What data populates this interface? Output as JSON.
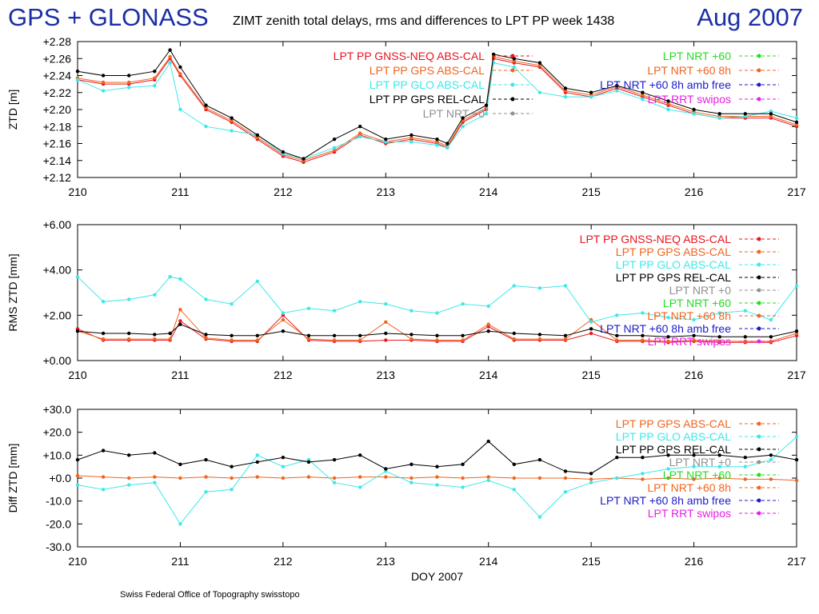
{
  "header": {
    "left_title": "GPS + GLONASS",
    "main_title": "ZIMT zenith total delays, rms and differences to LPT PP week 1438",
    "date": "Aug 2007"
  },
  "footer": {
    "credit": "Swiss Federal Office of Topography swisstopo"
  },
  "colors": {
    "gnss_neq": "#e8141e",
    "gps_abs": "#f0641e",
    "glo_abs": "#3ee8e8",
    "gps_rel": "#000000",
    "nrt0": "#909090",
    "nrt60": "#22dd22",
    "nrt60_8h": "#f0641e",
    "nrt60_8h_amb": "#1c1cc8",
    "rrt": "#e81ee8"
  },
  "chart_data": [
    {
      "type": "line",
      "ylabel": "ZTD [m]",
      "xlabel": "",
      "xlim": [
        210,
        217
      ],
      "ylim": [
        2.12,
        2.28
      ],
      "xticks": [
        "210",
        "211",
        "212",
        "213",
        "214",
        "215",
        "216",
        "217"
      ],
      "yticks": [
        "+2.12",
        "+2.14",
        "+2.16",
        "+2.18",
        "+2.20",
        "+2.22",
        "+2.24",
        "+2.26",
        "+2.28"
      ],
      "x": [
        210.0,
        210.25,
        210.5,
        210.75,
        210.9,
        211.0,
        211.25,
        211.5,
        211.75,
        212.0,
        212.2,
        212.5,
        212.75,
        213.0,
        213.25,
        213.5,
        213.6,
        213.75,
        213.98,
        214.05,
        214.25,
        214.5,
        214.75,
        215.0,
        215.25,
        215.5,
        215.75,
        216.0,
        216.25,
        216.5,
        216.75,
        217.0
      ],
      "series": [
        {
          "name": "LPT PP GNSS-NEQ ABS-CAL",
          "color_key": "gnss_neq",
          "values": [
            2.235,
            2.23,
            2.23,
            2.235,
            2.26,
            2.24,
            2.2,
            2.185,
            2.165,
            2.145,
            2.138,
            2.15,
            2.17,
            2.16,
            2.165,
            2.16,
            2.155,
            2.185,
            2.2,
            2.26,
            2.255,
            2.25,
            2.22,
            2.215,
            2.225,
            2.215,
            2.205,
            2.195,
            2.19,
            2.19,
            2.19,
            2.18
          ]
        },
        {
          "name": "LPT PP GPS ABS-CAL",
          "color_key": "gps_abs",
          "values": [
            2.237,
            2.232,
            2.232,
            2.237,
            2.262,
            2.242,
            2.202,
            2.187,
            2.167,
            2.147,
            2.14,
            2.152,
            2.172,
            2.162,
            2.167,
            2.162,
            2.157,
            2.187,
            2.202,
            2.262,
            2.257,
            2.252,
            2.222,
            2.217,
            2.227,
            2.217,
            2.207,
            2.197,
            2.192,
            2.192,
            2.192,
            2.182
          ]
        },
        {
          "name": "LPT PP GLO ABS-CAL",
          "color_key": "glo_abs",
          "values": [
            2.235,
            2.222,
            2.226,
            2.228,
            2.255,
            2.2,
            2.18,
            2.175,
            2.17,
            2.148,
            2.142,
            2.155,
            2.168,
            2.162,
            2.162,
            2.158,
            2.155,
            2.18,
            2.195,
            2.255,
            2.25,
            2.22,
            2.215,
            2.215,
            2.222,
            2.212,
            2.2,
            2.195,
            2.19,
            2.192,
            2.198,
            2.19
          ]
        },
        {
          "name": "LPT PP GPS REL-CAL",
          "color_key": "gps_rel",
          "values": [
            2.245,
            2.24,
            2.24,
            2.245,
            2.27,
            2.25,
            2.205,
            2.19,
            2.17,
            2.15,
            2.142,
            2.165,
            2.18,
            2.165,
            2.17,
            2.165,
            2.16,
            2.19,
            2.205,
            2.265,
            2.26,
            2.255,
            2.225,
            2.22,
            2.228,
            2.22,
            2.21,
            2.2,
            2.195,
            2.195,
            2.195,
            2.185
          ]
        }
      ],
      "legend": {
        "placement": "inside-top",
        "left": [
          {
            "label": "LPT PP GNSS-NEQ ABS-CAL",
            "color_key": "gnss_neq"
          },
          {
            "label": "LPT PP GPS ABS-CAL",
            "color_key": "gps_abs"
          },
          {
            "label": "LPT PP GLO ABS-CAL",
            "color_key": "glo_abs"
          },
          {
            "label": "LPT PP GPS REL-CAL",
            "color_key": "gps_rel"
          },
          {
            "label": "LPT NRT +0",
            "color_key": "nrt0"
          }
        ],
        "right": [
          {
            "label": "LPT NRT +60",
            "color_key": "nrt60"
          },
          {
            "label": "LPT NRT +60 8h",
            "color_key": "nrt60_8h"
          },
          {
            "label": "LPT NRT +60 8h amb free",
            "color_key": "nrt60_8h_amb"
          },
          {
            "label": "LPT RRT swipos",
            "color_key": "rrt"
          }
        ]
      }
    },
    {
      "type": "line",
      "ylabel": "RMS ZTD [mm]",
      "xlabel": "",
      "xlim": [
        210,
        217
      ],
      "ylim": [
        0,
        6
      ],
      "xticks": [
        "210",
        "211",
        "212",
        "213",
        "214",
        "215",
        "216",
        "217"
      ],
      "yticks": [
        "+0.00",
        "+2.00",
        "+4.00",
        "+6.00"
      ],
      "x": [
        210.0,
        210.25,
        210.5,
        210.75,
        210.9,
        211.0,
        211.25,
        211.5,
        211.75,
        212.0,
        212.25,
        212.5,
        212.75,
        213.0,
        213.25,
        213.5,
        213.75,
        214.0,
        214.25,
        214.5,
        214.75,
        215.0,
        215.25,
        215.5,
        215.75,
        216.0,
        216.25,
        216.5,
        216.75,
        217.0
      ],
      "series": [
        {
          "name": "LPT PP GNSS-NEQ ABS-CAL",
          "color_key": "gnss_neq",
          "values": [
            1.4,
            0.9,
            0.9,
            0.9,
            0.9,
            1.75,
            0.95,
            0.85,
            0.85,
            2.0,
            0.9,
            0.85,
            0.85,
            0.9,
            0.9,
            0.85,
            0.85,
            1.5,
            0.9,
            0.9,
            0.9,
            1.2,
            0.85,
            0.85,
            0.8,
            0.85,
            0.8,
            0.8,
            0.8,
            1.1
          ]
        },
        {
          "name": "LPT PP GPS ABS-CAL",
          "color_key": "gps_abs",
          "values": [
            1.3,
            0.95,
            0.95,
            0.95,
            0.95,
            2.25,
            1.0,
            0.9,
            0.9,
            1.8,
            0.95,
            0.9,
            0.9,
            1.7,
            0.95,
            0.9,
            0.9,
            1.6,
            0.95,
            0.95,
            0.95,
            1.8,
            0.9,
            0.9,
            0.85,
            0.9,
            0.85,
            0.85,
            0.85,
            1.2
          ]
        },
        {
          "name": "LPT PP GLO ABS-CAL",
          "color_key": "glo_abs",
          "values": [
            3.7,
            2.6,
            2.7,
            2.9,
            3.7,
            3.6,
            2.7,
            2.5,
            3.5,
            2.1,
            2.3,
            2.2,
            2.6,
            2.5,
            2.2,
            2.1,
            2.5,
            2.4,
            3.3,
            3.2,
            3.3,
            1.7,
            2.0,
            2.1,
            1.9,
            1.8,
            2.1,
            2.2,
            1.8,
            3.3
          ]
        },
        {
          "name": "LPT PP GPS REL-CAL",
          "color_key": "gps_rel",
          "values": [
            1.3,
            1.2,
            1.2,
            1.15,
            1.2,
            1.6,
            1.15,
            1.1,
            1.1,
            1.3,
            1.1,
            1.1,
            1.1,
            1.2,
            1.15,
            1.1,
            1.1,
            1.3,
            1.2,
            1.15,
            1.1,
            1.4,
            1.1,
            1.1,
            1.05,
            1.1,
            1.05,
            1.05,
            1.05,
            1.3
          ]
        }
      ],
      "legend": {
        "placement": "inside-right",
        "entries": [
          {
            "label": "LPT PP GNSS-NEQ ABS-CAL",
            "color_key": "gnss_neq"
          },
          {
            "label": "LPT PP GPS ABS-CAL",
            "color_key": "gps_abs"
          },
          {
            "label": "LPT PP GLO ABS-CAL",
            "color_key": "glo_abs"
          },
          {
            "label": "LPT PP GPS REL-CAL",
            "color_key": "gps_rel"
          },
          {
            "label": "LPT NRT +0",
            "color_key": "nrt0"
          },
          {
            "label": "LPT NRT +60",
            "color_key": "nrt60"
          },
          {
            "label": "LPT NRT +60 8h",
            "color_key": "nrt60_8h"
          },
          {
            "label": "LPT NRT +60 8h amb free",
            "color_key": "nrt60_8h_amb"
          },
          {
            "label": "LPT RRT swipos",
            "color_key": "rrt"
          }
        ]
      }
    },
    {
      "type": "line",
      "ylabel": "Diff ZTD [mm]",
      "xlabel": "DOY 2007",
      "xlim": [
        210,
        217
      ],
      "ylim": [
        -30,
        30
      ],
      "xticks": [
        "210",
        "211",
        "212",
        "213",
        "214",
        "215",
        "216",
        "217"
      ],
      "yticks": [
        "-30.0",
        "-20.0",
        "-10.0",
        "+0.0",
        "+10.0",
        "+20.0",
        "+30.0"
      ],
      "x": [
        210.0,
        210.25,
        210.5,
        210.75,
        211.0,
        211.25,
        211.5,
        211.75,
        212.0,
        212.25,
        212.5,
        212.75,
        213.0,
        213.25,
        213.5,
        213.75,
        214.0,
        214.25,
        214.5,
        214.75,
        215.0,
        215.25,
        215.5,
        215.75,
        216.0,
        216.25,
        216.5,
        216.75,
        217.0
      ],
      "series": [
        {
          "name": "LPT PP GPS ABS-CAL",
          "color_key": "gps_abs",
          "values": [
            1.0,
            0.5,
            0.0,
            0.5,
            0.0,
            0.5,
            0.0,
            0.5,
            0.0,
            0.5,
            0.0,
            0.5,
            0.5,
            0.0,
            0.5,
            0.0,
            0.5,
            0.0,
            0.0,
            0.0,
            -0.5,
            0.0,
            -0.5,
            0.0,
            -0.5,
            0.0,
            -0.5,
            -0.5,
            -1.0
          ]
        },
        {
          "name": "LPT PP GLO ABS-CAL",
          "color_key": "glo_abs",
          "values": [
            -3.0,
            -5.0,
            -3.0,
            -2.0,
            -20.0,
            -6.0,
            -5.0,
            10.0,
            5.0,
            8.0,
            -2.0,
            -4.0,
            3.0,
            -2.0,
            -3.0,
            -4.0,
            -1.0,
            -5.0,
            -17.0,
            -6.0,
            -2.0,
            0.0,
            2.0,
            4.0,
            5.0,
            5.0,
            5.0,
            8.0,
            18.0
          ]
        },
        {
          "name": "LPT PP GPS REL-CAL",
          "color_key": "gps_rel",
          "values": [
            8.0,
            12.0,
            10.0,
            11.0,
            6.0,
            8.0,
            5.0,
            7.0,
            9.0,
            7.0,
            8.0,
            10.0,
            4.0,
            6.0,
            5.0,
            6.0,
            16.0,
            6.0,
            8.0,
            3.0,
            2.0,
            9.0,
            9.0,
            10.0,
            10.0,
            10.0,
            9.0,
            10.0,
            8.0
          ]
        }
      ],
      "legend": {
        "placement": "inside-right",
        "entries": [
          {
            "label": "LPT PP GPS ABS-CAL",
            "color_key": "gps_abs"
          },
          {
            "label": "LPT PP GLO ABS-CAL",
            "color_key": "glo_abs"
          },
          {
            "label": "LPT PP GPS REL-CAL",
            "color_key": "gps_rel"
          },
          {
            "label": "LPT NRT +0",
            "color_key": "nrt0"
          },
          {
            "label": "LPT NRT +60",
            "color_key": "nrt60"
          },
          {
            "label": "LPT NRT +60 8h",
            "color_key": "nrt60_8h"
          },
          {
            "label": "LPT NRT +60 8h amb free",
            "color_key": "nrt60_8h_amb"
          },
          {
            "label": "LPT RRT swipos",
            "color_key": "rrt"
          }
        ]
      }
    }
  ]
}
